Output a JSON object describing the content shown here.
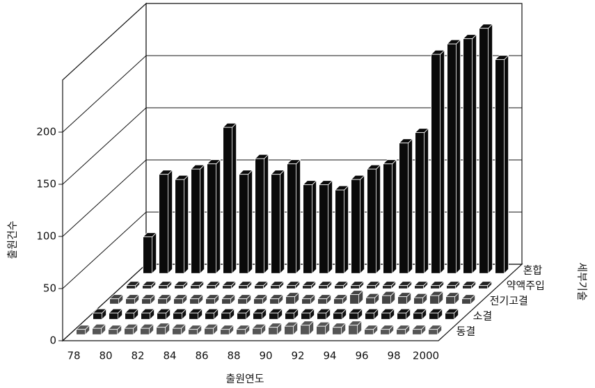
{
  "chart_data": {
    "type": "bar3d",
    "x_label": "출원연도",
    "y_label": "출원건수",
    "z_label": "세부기술",
    "categories": [
      "78",
      null,
      "80",
      null,
      "82",
      null,
      "84",
      null,
      "86",
      null,
      "88",
      null,
      "90",
      null,
      "92",
      null,
      "94",
      null,
      "96",
      null,
      "98",
      null,
      "2000"
    ],
    "series": [
      {
        "name": "동결",
        "color": "#555555",
        "values": [
          5,
          6,
          5,
          6,
          6,
          7,
          6,
          5,
          6,
          5,
          5,
          6,
          7,
          8,
          9,
          8,
          7,
          9,
          5,
          5,
          5,
          5,
          5
        ]
      },
      {
        "name": "소결",
        "color": "#111111",
        "values": [
          6,
          6,
          6,
          6,
          6,
          6,
          6,
          6,
          6,
          6,
          6,
          6,
          6,
          6,
          6,
          6,
          6,
          6,
          6,
          6,
          6,
          6,
          6
        ]
      },
      {
        "name": "전기고결",
        "color": "#444444",
        "values": [
          5,
          5,
          5,
          5,
          5,
          5,
          5,
          5,
          5,
          5,
          5,
          7,
          5,
          5,
          5,
          9,
          6,
          8,
          7,
          6,
          8,
          7,
          5
        ]
      },
      {
        "name": "약액주입",
        "color": "#222222",
        "values": [
          3,
          3,
          3,
          3,
          3,
          3,
          3,
          3,
          3,
          3,
          3,
          3,
          3,
          3,
          3,
          3,
          3,
          3,
          3,
          3,
          3,
          3,
          3
        ]
      },
      {
        "name": "혼합",
        "color": "#0a0a0a",
        "values": [
          35,
          95,
          90,
          100,
          105,
          140,
          95,
          110,
          95,
          105,
          85,
          85,
          80,
          90,
          100,
          105,
          125,
          135,
          210,
          220,
          225,
          235,
          205
        ]
      }
    ],
    "ylim": [
      0,
      250
    ],
    "yticks": [
      0,
      50,
      100,
      150,
      200
    ]
  }
}
